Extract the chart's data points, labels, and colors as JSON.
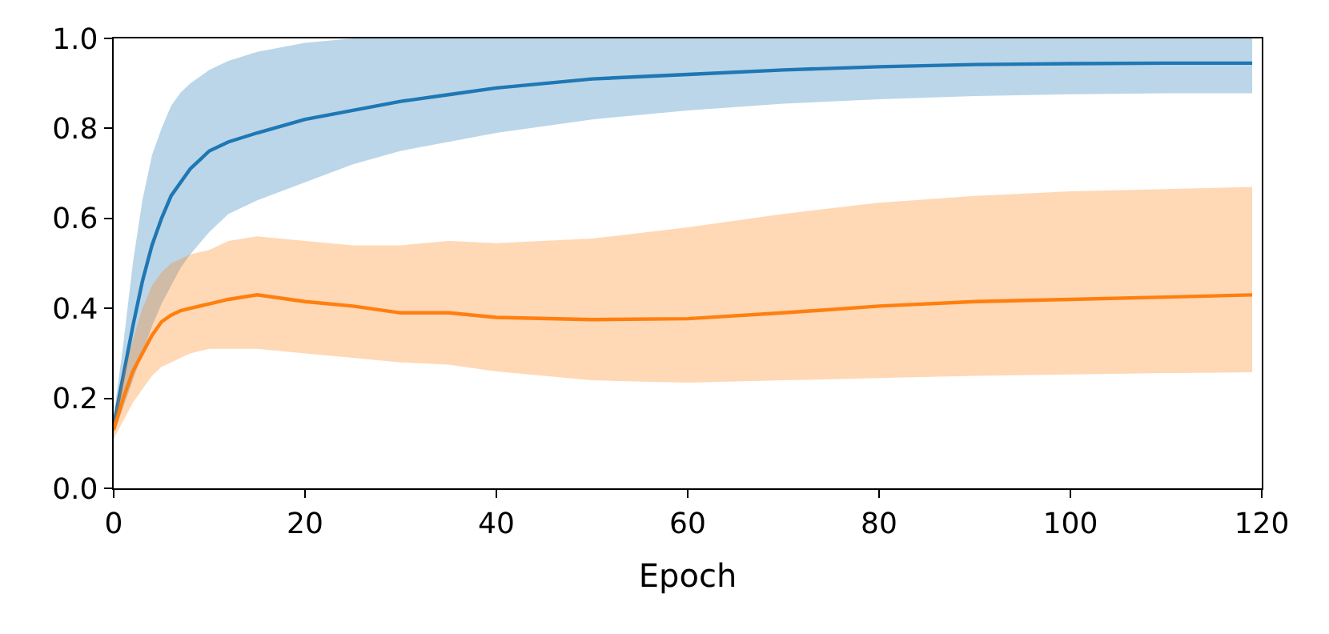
{
  "chart_data": {
    "type": "line",
    "xlabel": "Epoch",
    "x": [
      0,
      1,
      2,
      3,
      4,
      5,
      6,
      7,
      8,
      10,
      12,
      15,
      20,
      25,
      30,
      35,
      40,
      50,
      60,
      70,
      80,
      90,
      100,
      110,
      119
    ],
    "series": [
      {
        "color": "#1f77b4",
        "values": [
          0.14,
          0.25,
          0.36,
          0.46,
          0.54,
          0.6,
          0.65,
          0.68,
          0.71,
          0.75,
          0.77,
          0.79,
          0.82,
          0.84,
          0.86,
          0.875,
          0.89,
          0.91,
          0.92,
          0.93,
          0.937,
          0.942,
          0.944,
          0.945,
          0.945
        ],
        "lower": [
          0.12,
          0.18,
          0.24,
          0.3,
          0.36,
          0.41,
          0.45,
          0.49,
          0.52,
          0.57,
          0.61,
          0.64,
          0.68,
          0.72,
          0.75,
          0.77,
          0.79,
          0.82,
          0.84,
          0.855,
          0.865,
          0.872,
          0.876,
          0.878,
          0.878
        ],
        "upper": [
          0.16,
          0.32,
          0.5,
          0.64,
          0.74,
          0.8,
          0.85,
          0.88,
          0.9,
          0.93,
          0.95,
          0.97,
          0.99,
          1.0,
          1.0,
          1.0,
          1.0,
          1.0,
          1.0,
          1.0,
          1.0,
          1.0,
          1.0,
          1.0,
          1.0
        ]
      },
      {
        "color": "#ff7f0e",
        "values": [
          0.13,
          0.2,
          0.26,
          0.3,
          0.34,
          0.37,
          0.385,
          0.395,
          0.4,
          0.41,
          0.42,
          0.43,
          0.415,
          0.405,
          0.39,
          0.39,
          0.38,
          0.375,
          0.377,
          0.39,
          0.405,
          0.415,
          0.42,
          0.425,
          0.43
        ],
        "lower": [
          0.11,
          0.15,
          0.19,
          0.22,
          0.25,
          0.27,
          0.28,
          0.29,
          0.3,
          0.31,
          0.31,
          0.31,
          0.3,
          0.29,
          0.28,
          0.275,
          0.26,
          0.24,
          0.235,
          0.24,
          0.245,
          0.25,
          0.253,
          0.256,
          0.258
        ],
        "upper": [
          0.15,
          0.25,
          0.33,
          0.4,
          0.45,
          0.48,
          0.5,
          0.51,
          0.52,
          0.53,
          0.55,
          0.56,
          0.55,
          0.54,
          0.54,
          0.55,
          0.545,
          0.555,
          0.58,
          0.61,
          0.635,
          0.65,
          0.66,
          0.665,
          0.67
        ]
      }
    ],
    "xlim": [
      0,
      120
    ],
    "xticks": [
      0,
      20,
      40,
      60,
      80,
      100,
      120
    ],
    "ylim": [
      0,
      1.0
    ],
    "yticks": [
      {
        "value": 0,
        "label": "0.0"
      },
      {
        "value": 0.2,
        "label": "0.2"
      },
      {
        "value": 0.4,
        "label": "0.4"
      },
      {
        "value": 0.6,
        "label": "0.6"
      },
      {
        "value": 0.8,
        "label": "0.8"
      },
      {
        "value": 1.0,
        "label": "1.0"
      }
    ]
  }
}
